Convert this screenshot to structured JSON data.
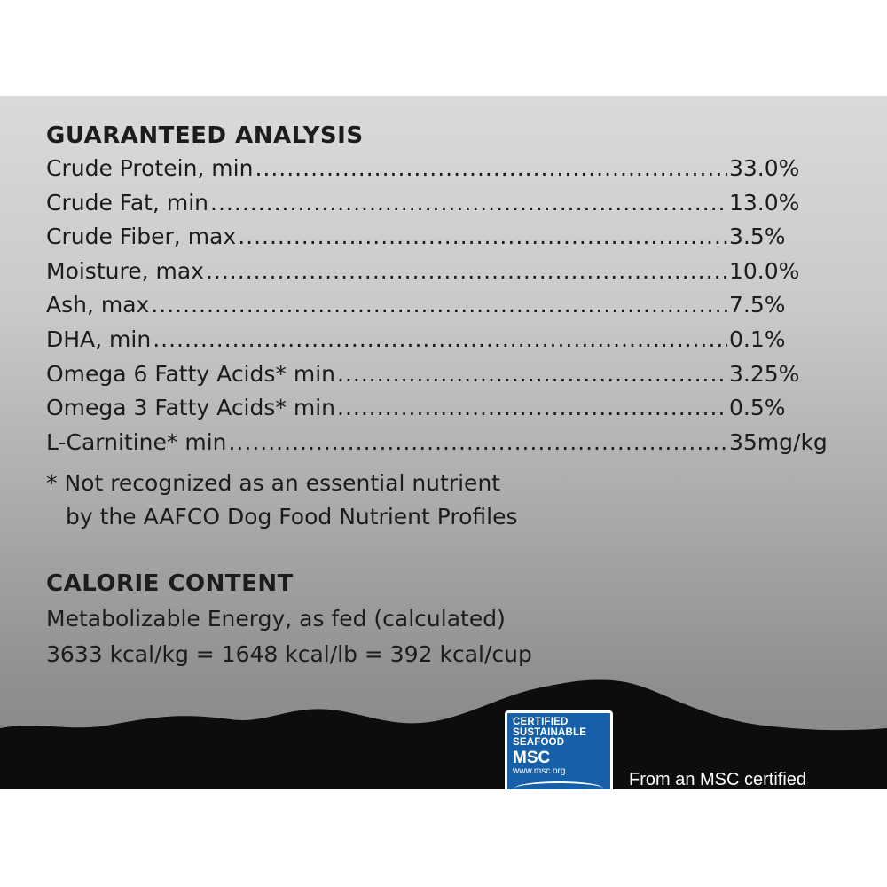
{
  "guaranteed_analysis": {
    "title": "GUARANTEED ANALYSIS",
    "rows": [
      {
        "label": "Crude Protein, min",
        "value": "33.0%"
      },
      {
        "label": "Crude Fat, min",
        "value": "13.0%"
      },
      {
        "label": "Crude Fiber, max",
        "value": "3.5%"
      },
      {
        "label": "Moisture, max",
        "value": "10.0%"
      },
      {
        "label": "Ash, max",
        "value": "7.5%"
      },
      {
        "label": "DHA, min",
        "value": "0.1%"
      },
      {
        "label": "Omega 6 Fatty Acids* min",
        "value": "3.25%"
      },
      {
        "label": "Omega 3 Fatty Acids* min",
        "value": "0.5%"
      },
      {
        "label": "L-Carnitine* min",
        "value": "35mg/kg"
      }
    ],
    "footnote_line1": "* Not recognized as an essential nutrient",
    "footnote_line2": "by the AAFCO Dog Food Nutrient Profiles"
  },
  "calorie_content": {
    "title": "CALORIE CONTENT",
    "line1": "Metabolizable Energy, as fed (calculated)",
    "line2": "3633 kcal/kg = 1648 kcal/lb = 392 kcal/cup"
  },
  "msc": {
    "badge_line1": "CERTIFIED",
    "badge_line2": "SUSTAINABLE",
    "badge_line3": "SEAFOOD",
    "badge_mark": "MSC",
    "badge_url": "www.msc.org",
    "caption": "From an MSC certified",
    "badge_color": "#1560a8"
  },
  "colors": {
    "text": "#1c1c1c",
    "mountains": "#0d0d0d"
  }
}
